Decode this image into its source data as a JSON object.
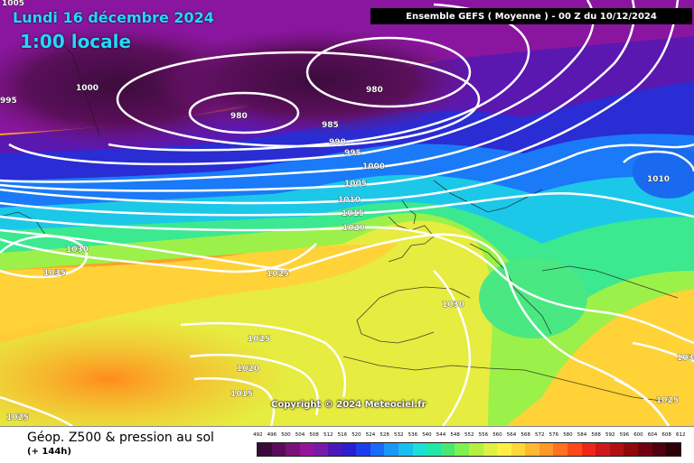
{
  "header": {
    "date": "Lundi 16 décembre 2024",
    "local_time": "1:00 locale",
    "model_run": "Ensemble GEFS  ( Moyenne )  -  00 Z du 10/12/2024"
  },
  "map": {
    "copyright": "Copyright © 2024 Meteociel.fr",
    "isobar_labels": [
      {
        "value": "1005"
      },
      {
        "value": "1000"
      },
      {
        "value": "995"
      },
      {
        "value": "980"
      },
      {
        "value": "980"
      },
      {
        "value": "985"
      },
      {
        "value": "990"
      },
      {
        "value": "995"
      },
      {
        "value": "1000"
      },
      {
        "value": "1005"
      },
      {
        "value": "1010"
      },
      {
        "value": "1015"
      },
      {
        "value": "1020"
      },
      {
        "value": "1030"
      },
      {
        "value": "1035"
      },
      {
        "value": "1025"
      },
      {
        "value": "1030"
      },
      {
        "value": "1025"
      },
      {
        "value": "1020"
      },
      {
        "value": "1015"
      },
      {
        "value": "1025"
      },
      {
        "value": "1010"
      },
      {
        "value": "1030"
      },
      {
        "value": "1025"
      }
    ]
  },
  "footer": {
    "title": "Géop. Z500 & pression au sol",
    "subtitle": "(+ 144h)"
  },
  "legend": {
    "labels": [
      "492",
      "496",
      "500",
      "504",
      "508",
      "512",
      "516",
      "520",
      "524",
      "528",
      "532",
      "536",
      "540",
      "544",
      "548",
      "552",
      "556",
      "560",
      "564",
      "568",
      "572",
      "576",
      "580",
      "584",
      "588",
      "592",
      "596",
      "600",
      "604",
      "608",
      "612"
    ],
    "colors": [
      "#3a0a3a",
      "#5a0c5a",
      "#7a107a",
      "#96149a",
      "#7a1aa8",
      "#4a18b8",
      "#2a1ed0",
      "#1a3ef0",
      "#1a6afa",
      "#1a98fa",
      "#18c0f0",
      "#1ae0d8",
      "#20e8a8",
      "#48e870",
      "#7ef050",
      "#b4f040",
      "#e0f040",
      "#fff040",
      "#ffd838",
      "#ffb830",
      "#ff9828",
      "#ff7020",
      "#ff4818",
      "#f02818",
      "#d01818",
      "#b01010",
      "#900808",
      "#700010",
      "#500010",
      "#300008"
    ]
  }
}
